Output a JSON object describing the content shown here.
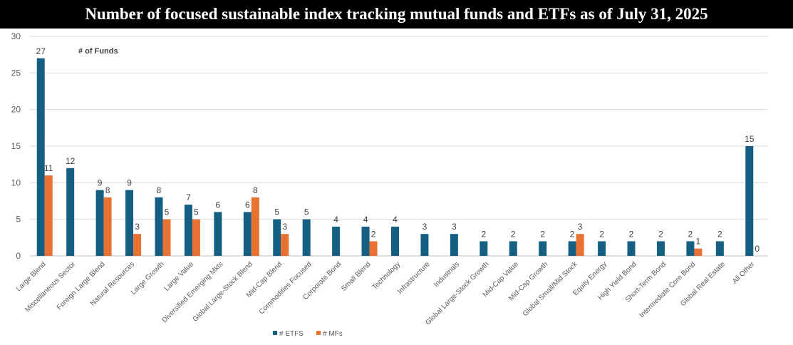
{
  "title": "Number of focused sustainable index tracking mutual funds and ETFs as of  July 31, 2025",
  "chart_data": {
    "type": "bar",
    "ylim": [
      0,
      30
    ],
    "yticks": [
      "0",
      "5",
      "10",
      "15",
      "20",
      "25",
      "30"
    ],
    "grid": true,
    "annotation": "# of Funds",
    "legend_position": "bottom",
    "categories": [
      "Large Blend",
      "Miscellaneous Sector",
      "Foreign Large Blend",
      "Natural Resources",
      "Large Growth",
      "Large Value",
      "Diversified Emerging Mkts",
      "Global Large-Stock Blend",
      "Mid-Cap Blend",
      "Commodities Focused",
      "Corporate Bond",
      "Small Blend",
      "Technology",
      "Infrastructure",
      "Industrials",
      "Global Large-Stock Growth",
      "Mid-Cap Value",
      "Mid-Cap Growth",
      "Global Small/Mid Stock",
      "Equity Energy",
      "High Yield Bond",
      "Short-Term Bond",
      "Intermediate Core Bond",
      "Global Real Estate",
      "All Other"
    ],
    "series": [
      {
        "name": "# ETFS",
        "color": "#156082",
        "values": [
          27,
          12,
          9,
          9,
          8,
          7,
          6,
          6,
          5,
          5,
          4,
          4,
          4,
          3,
          3,
          2,
          2,
          2,
          2,
          2,
          2,
          2,
          2,
          2,
          15
        ]
      },
      {
        "name": "# MFs",
        "color": "#E97132",
        "values": [
          11,
          null,
          8,
          3,
          5,
          5,
          null,
          8,
          3,
          null,
          null,
          2,
          null,
          null,
          null,
          null,
          null,
          null,
          3,
          null,
          null,
          null,
          1,
          null,
          0
        ]
      }
    ]
  }
}
